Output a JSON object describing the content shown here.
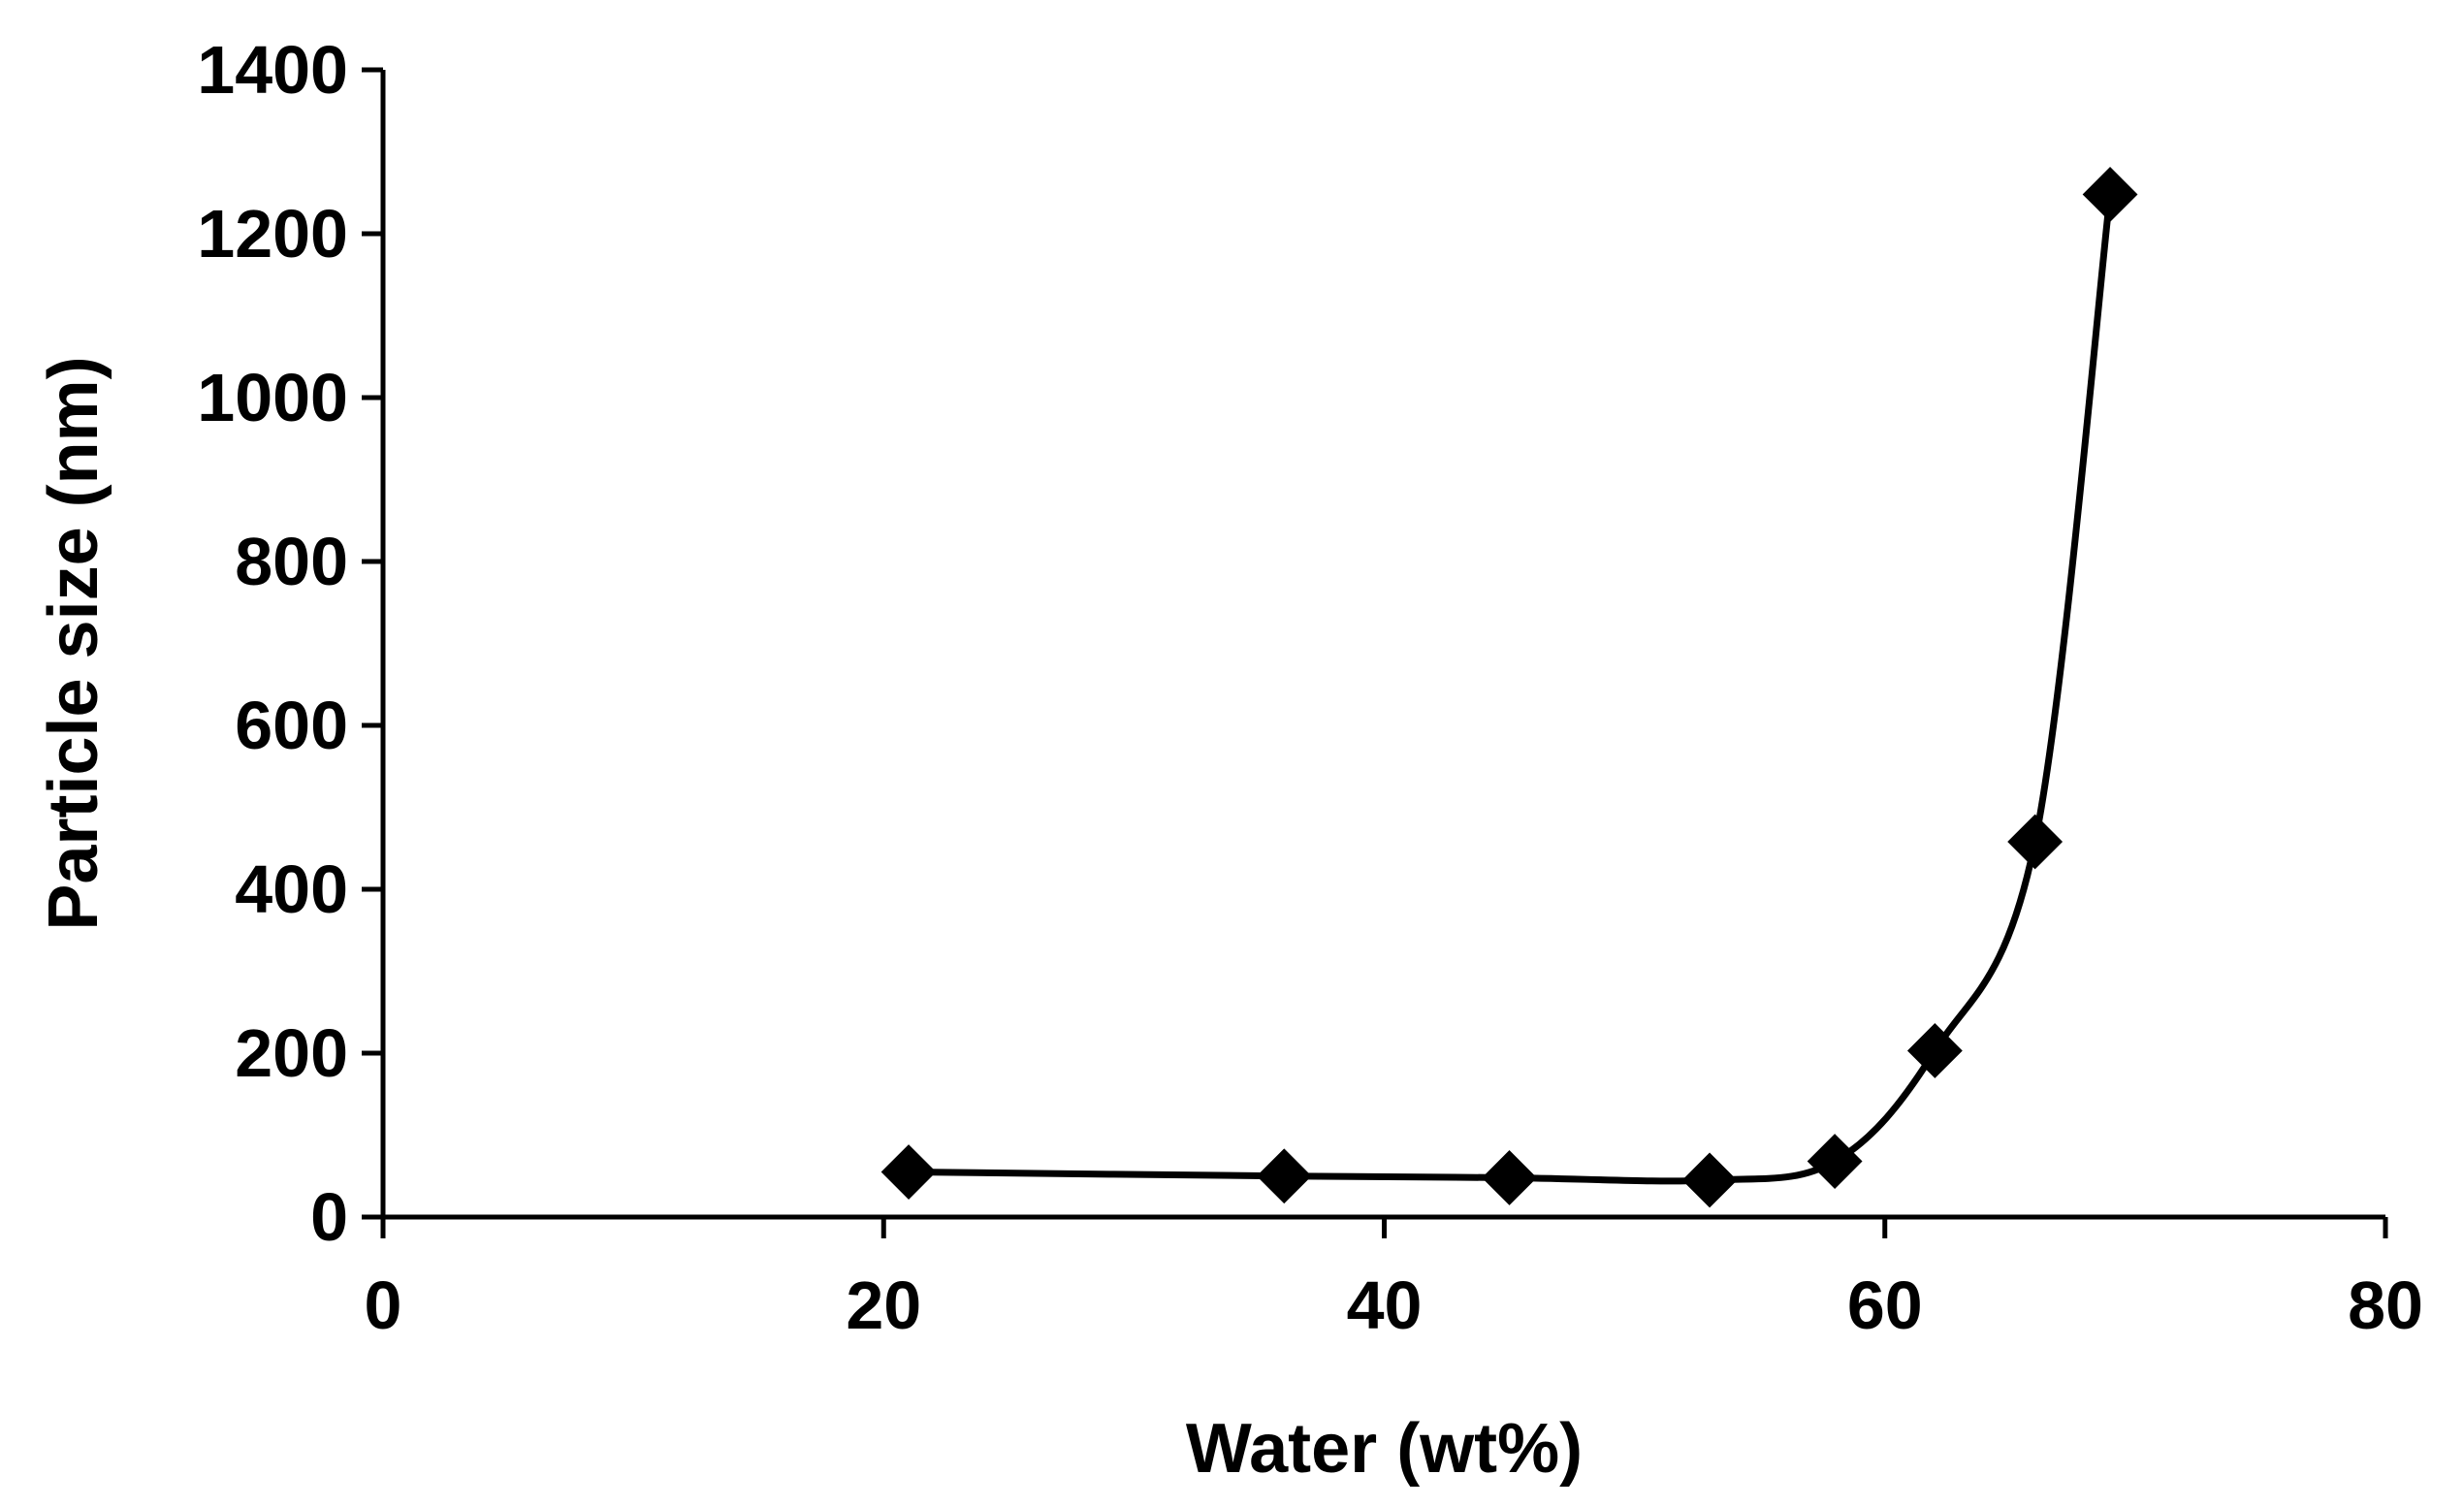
{
  "chart_data": {
    "type": "scatter",
    "title": "",
    "xlabel": "Water (wt%)",
    "ylabel": "Particle size (nm)",
    "xlim": [
      0,
      80
    ],
    "ylim": [
      0,
      1400
    ],
    "xticks": [
      0,
      20,
      40,
      60,
      80
    ],
    "yticks": [
      0,
      200,
      400,
      600,
      800,
      1000,
      1200,
      1400
    ],
    "xtick_labels": [
      "0",
      "20",
      "40",
      "60",
      "80"
    ],
    "ytick_labels": [
      "0",
      "200",
      "400",
      "600",
      "800",
      "1000",
      "1200",
      "1400"
    ],
    "grid": false,
    "legend": "none",
    "series": [
      {
        "name": "Particle size",
        "marker": "diamond",
        "line": "smooth",
        "color": "#000000",
        "x": [
          21,
          36,
          45,
          53,
          58,
          62,
          66,
          69
        ],
        "y": [
          55,
          50,
          48,
          45,
          68,
          203,
          458,
          1248
        ]
      }
    ]
  }
}
